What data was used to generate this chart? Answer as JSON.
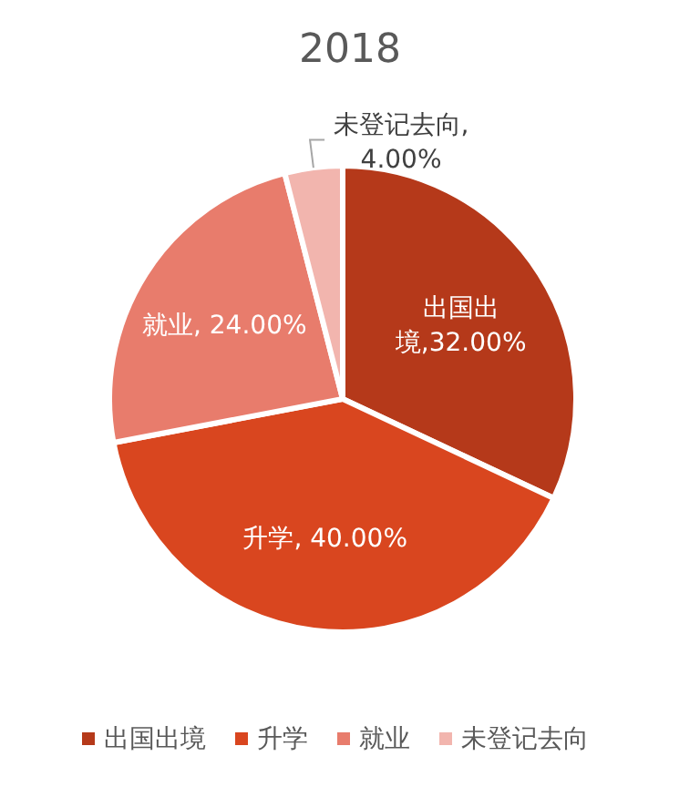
{
  "chart_data": {
    "type": "pie",
    "title": "2018",
    "categories": [
      "出国出境",
      "升学",
      "就业",
      "未登记去向"
    ],
    "values": [
      32,
      40,
      24,
      4
    ],
    "colors": [
      "#b5391a",
      "#d9461f",
      "#e87c6c",
      "#f2b5ae"
    ],
    "value_labels": [
      "出国出境,32.00%",
      "升学, 40.00%",
      "就业, 24.00%",
      "未登记去向, 4.00%"
    ],
    "legend": "bottom"
  }
}
